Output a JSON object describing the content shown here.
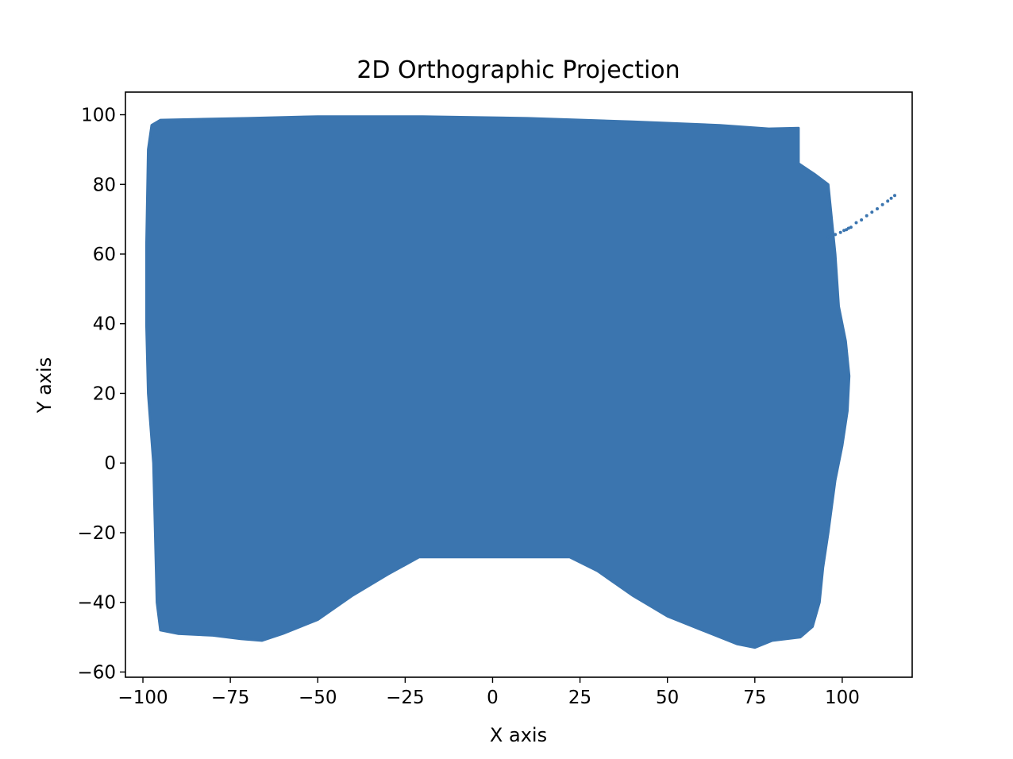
{
  "chart_data": {
    "type": "scatter",
    "title": "2D Orthographic Projection",
    "xlabel": "X axis",
    "ylabel": "Y axis",
    "xlim": [
      -105,
      120
    ],
    "ylim": [
      -61.5,
      106.5
    ],
    "xticks": [
      -100,
      -75,
      -50,
      -25,
      0,
      25,
      50,
      75,
      100
    ],
    "xtick_labels": [
      "−100",
      "−75",
      "−50",
      "−25",
      "0",
      "25",
      "50",
      "75",
      "100"
    ],
    "yticks": [
      -60,
      -40,
      -20,
      0,
      20,
      40,
      60,
      80,
      100
    ],
    "ytick_labels": [
      "−60",
      "−40",
      "−20",
      "0",
      "20",
      "40",
      "60",
      "80",
      "100"
    ],
    "grid": false,
    "legend": false,
    "color": "#3b75af",
    "series": [
      {
        "kind": "dense-point-cloud-outline",
        "points": [
          [
            -99,
            62
          ],
          [
            -98.5,
            90
          ],
          [
            -97.5,
            97
          ],
          [
            -95,
            98.5
          ],
          [
            -70,
            99
          ],
          [
            -50,
            99.5
          ],
          [
            -20,
            99.5
          ],
          [
            10,
            99
          ],
          [
            40,
            98
          ],
          [
            65,
            97
          ],
          [
            79,
            96
          ],
          [
            87.5,
            96.2
          ],
          [
            87.5,
            86
          ],
          [
            92,
            83
          ],
          [
            96,
            80
          ],
          [
            97,
            70
          ],
          [
            98,
            60
          ],
          [
            99,
            45
          ],
          [
            101,
            35
          ],
          [
            102,
            25
          ],
          [
            101.5,
            15
          ],
          [
            100,
            5
          ],
          [
            98,
            -5
          ],
          [
            96,
            -20
          ],
          [
            94.5,
            -30
          ],
          [
            93.5,
            -40
          ],
          [
            91.5,
            -47
          ],
          [
            88,
            -50
          ],
          [
            80,
            -51
          ],
          [
            75,
            -53
          ],
          [
            70,
            -52
          ],
          [
            60,
            -48
          ],
          [
            50,
            -44
          ],
          [
            40,
            -38
          ],
          [
            30,
            -31
          ],
          [
            22,
            -27
          ],
          [
            -21,
            -27
          ],
          [
            -30,
            -32
          ],
          [
            -40,
            -38
          ],
          [
            -50,
            -45
          ],
          [
            -60,
            -49
          ],
          [
            -66,
            -51
          ],
          [
            -72,
            -50.5
          ],
          [
            -80,
            -49.5
          ],
          [
            -90,
            -49
          ],
          [
            -95,
            -48
          ],
          [
            -96,
            -40
          ],
          [
            -96.5,
            -20
          ],
          [
            -97,
            0
          ],
          [
            -98.5,
            20
          ],
          [
            -99,
            40
          ]
        ]
      },
      {
        "kind": "sparse-points",
        "points": [
          [
            96,
            65
          ],
          [
            97,
            65.3
          ],
          [
            98,
            65.6
          ],
          [
            99.5,
            66.2
          ],
          [
            100.5,
            66.8
          ],
          [
            101.2,
            67
          ],
          [
            101.8,
            67.4
          ],
          [
            102.5,
            67.7
          ],
          [
            104,
            69
          ],
          [
            105.5,
            69.8
          ],
          [
            107,
            71
          ],
          [
            108.5,
            72
          ],
          [
            110,
            73
          ],
          [
            111.5,
            74.2
          ],
          [
            113,
            75.2
          ],
          [
            114,
            76
          ],
          [
            115,
            76.8
          ]
        ]
      }
    ]
  }
}
